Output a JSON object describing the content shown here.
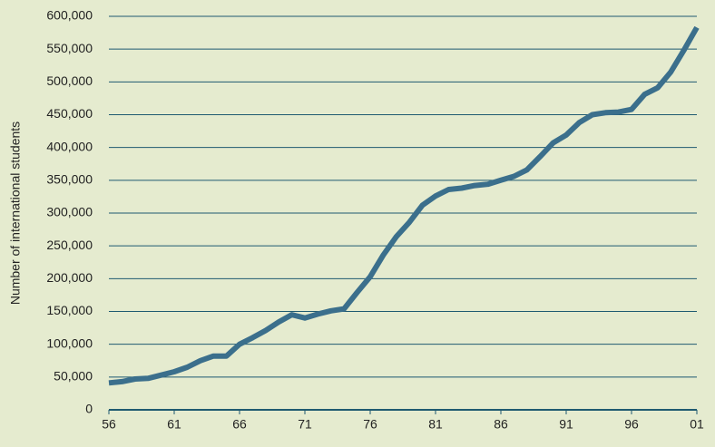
{
  "chart_data": {
    "type": "line",
    "y_label": "Number of international students",
    "categories": [
      "56",
      null,
      null,
      null,
      null,
      "61",
      null,
      null,
      null,
      null,
      "66",
      null,
      null,
      null,
      null,
      "71",
      null,
      null,
      null,
      null,
      "76",
      null,
      null,
      null,
      null,
      "81",
      null,
      null,
      null,
      null,
      "86",
      null,
      null,
      null,
      null,
      "91",
      null,
      null,
      null,
      null,
      "96",
      null,
      null,
      null,
      null,
      "01"
    ],
    "series": [
      {
        "color": "#3b6f8c",
        "values": [
          41000,
          43000,
          47000,
          48000,
          53000,
          58000,
          65000,
          75000,
          82000,
          82000,
          100000,
          110000,
          121000,
          134000,
          145000,
          140000,
          146000,
          151000,
          154000,
          179000,
          203000,
          236000,
          264000,
          286000,
          312000,
          326000,
          336000,
          338000,
          342000,
          344000,
          350000,
          356000,
          366000,
          386000,
          407000,
          419000,
          438000,
          450000,
          453000,
          454000,
          458000,
          481000,
          491000,
          515000,
          548000,
          583000
        ]
      }
    ],
    "ylim": [
      0,
      600000
    ],
    "yticks": [
      0,
      {
        "value": 50000,
        "label": "50,000"
      },
      {
        "value": 100000,
        "label": "100,000"
      },
      {
        "value": 150000,
        "label": "150,000"
      },
      {
        "value": 200000,
        "label": "200,000"
      },
      {
        "value": 250000,
        "label": "250,000"
      },
      {
        "value": 300000,
        "label": "300,000"
      },
      {
        "value": 350000,
        "label": "350,000"
      },
      {
        "value": 400000,
        "label": "400,000"
      },
      {
        "value": 450000,
        "label": "450,000"
      },
      {
        "value": 500000,
        "label": "500,000"
      },
      {
        "value": 550000,
        "label": "550,000"
      },
      {
        "value": 600000,
        "label": "600,000"
      }
    ],
    "grid": true,
    "grid_color": "#1f5a70",
    "background": "#e5ebcf"
  }
}
